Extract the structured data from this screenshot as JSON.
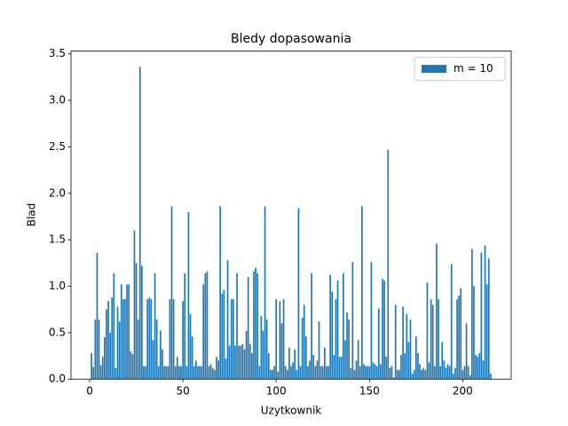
{
  "chart_data": {
    "type": "bar",
    "title": "Bledy dopasowania",
    "x_label": "Uzytkownik",
    "y_label": "Blad",
    "series": [
      {
        "name": "m = 10",
        "color": "#1f77b4",
        "x": [
          1,
          2,
          3,
          4,
          5,
          6,
          7,
          8,
          9,
          10,
          11,
          12,
          13,
          14,
          15,
          16,
          17,
          18,
          19,
          20,
          21,
          22,
          23,
          24,
          25,
          26,
          27,
          28,
          29,
          30,
          31,
          32,
          33,
          34,
          35,
          36,
          37,
          38,
          39,
          40,
          41,
          42,
          43,
          44,
          45,
          46,
          47,
          48,
          49,
          50,
          51,
          52,
          53,
          54,
          55,
          56,
          57,
          58,
          59,
          60,
          61,
          62,
          63,
          64,
          65,
          66,
          67,
          68,
          69,
          70,
          71,
          72,
          73,
          74,
          75,
          76,
          77,
          78,
          79,
          80,
          81,
          82,
          83,
          84,
          85,
          86,
          87,
          88,
          89,
          90,
          91,
          92,
          93,
          94,
          95,
          96,
          97,
          98,
          99,
          100,
          101,
          102,
          103,
          104,
          105,
          106,
          107,
          108,
          109,
          110,
          111,
          112,
          113,
          114,
          115,
          116,
          117,
          118,
          119,
          120,
          121,
          122,
          123,
          124,
          125,
          126,
          127,
          128,
          129,
          130,
          131,
          132,
          133,
          134,
          135,
          136,
          137,
          138,
          139,
          140,
          141,
          142,
          143,
          144,
          145,
          146,
          147,
          148,
          149,
          150,
          151,
          152,
          153,
          154,
          155,
          156,
          157,
          158,
          159,
          160,
          161,
          162,
          163,
          164,
          165,
          166,
          167,
          168,
          169,
          170,
          171,
          172,
          173,
          174,
          175,
          176,
          177,
          178,
          179,
          180,
          181,
          182,
          183,
          184,
          185,
          186,
          187,
          188,
          189,
          190,
          191,
          192,
          193,
          194,
          195,
          196,
          197,
          198,
          199,
          200,
          201,
          202,
          203,
          204,
          205,
          206,
          207,
          208,
          209,
          210,
          211,
          212,
          213,
          214,
          215
        ],
        "values": [
          0.28,
          0.13,
          0.64,
          1.36,
          0.64,
          0.15,
          0.24,
          0.45,
          0.75,
          0.84,
          0.5,
          0.88,
          1.14,
          0.12,
          0.78,
          0.62,
          1.02,
          0.86,
          0.86,
          1.02,
          1.02,
          0.3,
          0.27,
          1.6,
          1.25,
          0.64,
          3.36,
          1.22,
          0.14,
          0.14,
          0.86,
          0.88,
          0.86,
          0.42,
          1.14,
          0.64,
          0.14,
          0.52,
          0.32,
          0.14,
          0.14,
          0.14,
          0.86,
          1.86,
          0.86,
          0.14,
          0.24,
          0.14,
          0.14,
          0.84,
          1.14,
          0.14,
          1.8,
          0.7,
          0.46,
          0.14,
          0.2,
          0.14,
          0.14,
          0.14,
          1.02,
          1.14,
          1.16,
          0.14,
          0.16,
          0.12,
          0.1,
          0.24,
          0.2,
          1.86,
          0.92,
          0.96,
          0.22,
          1.28,
          0.36,
          0.86,
          0.86,
          0.36,
          1.14,
          0.36,
          0.36,
          0.38,
          0.32,
          0.52,
          1.1,
          0.38,
          0.28,
          1.16,
          1.2,
          1.14,
          0.14,
          0.68,
          0.52,
          1.86,
          0.64,
          0.28,
          0.1,
          0.1,
          0.14,
          0.86,
          0.08,
          0.84,
          0.6,
          0.86,
          0.14,
          0.1,
          0.34,
          0.14,
          0.18,
          0.32,
          0.1,
          1.84,
          0.14,
          0.66,
          0.8,
          0.46,
          0.14,
          0.2,
          1.14,
          0.26,
          0.14,
          0.2,
          0.62,
          0.14,
          0.14,
          0.34,
          0.14,
          0.14,
          1.12,
          0.94,
          0.26,
          0.86,
          1.06,
          0.24,
          0.24,
          1.14,
          0.42,
          0.72,
          0.64,
          0.12,
          1.26,
          0.1,
          0.2,
          0.42,
          0.14,
          1.86,
          0.16,
          0.14,
          0.14,
          0.14,
          1.26,
          0.18,
          0.16,
          0.14,
          0.76,
          0.16,
          1.08,
          1.06,
          0.24,
          2.47,
          0.12,
          0.14,
          0.02,
          0.8,
          0.1,
          0.1,
          0.26,
          0.78,
          0.28,
          0.7,
          0.4,
          0.64,
          0.06,
          0.1,
          0.46,
          0.28,
          0.16,
          0.1,
          0.12,
          0.1,
          1.04,
          0.18,
          0.86,
          0.8,
          0.14,
          1.46,
          0.86,
          0.14,
          0.4,
          0.2,
          0.12,
          0.16,
          0.14,
          1.24,
          0.06,
          0.12,
          0.86,
          0.9,
          0.98,
          0.1,
          0.14,
          0.6,
          0.14,
          0.04,
          1.4,
          1.0,
          0.26,
          0.24,
          0.28,
          1.36,
          0.2,
          1.44,
          1.02,
          1.3,
          0.06
        ]
      }
    ],
    "xlim": [
      -10,
      226
    ],
    "xticks": [
      0,
      50,
      100,
      150,
      200
    ],
    "ylim": [
      0,
      3.53
    ],
    "yticks": [
      {
        "value": 0,
        "label": "0.0"
      },
      0.5,
      {
        "value": 1,
        "label": "1.0"
      },
      1.5,
      {
        "value": 2,
        "label": "2.0"
      },
      2.5,
      {
        "value": 3,
        "label": "3.0"
      },
      3.5
    ],
    "legend": "upper right"
  }
}
